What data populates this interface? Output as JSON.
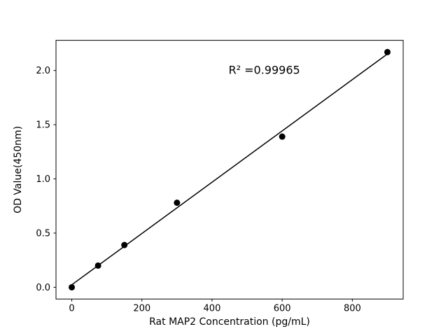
{
  "chart_data": {
    "type": "scatter",
    "title": "",
    "xlabel": "Rat MAP2 Concentration (pg/mL)",
    "ylabel": "OD Value(450nm)",
    "x": [
      0,
      75,
      150,
      300,
      600,
      900
    ],
    "y": [
      0.0,
      0.2,
      0.39,
      0.78,
      1.39,
      2.17
    ],
    "fit_line": {
      "slope": 0.002366,
      "intercept": 0.0231,
      "x_start": 0,
      "x_end": 900
    },
    "annotation": "R² =0.99965",
    "annotation_position": {
      "x_frac": 0.6,
      "y_frac": 0.13
    },
    "xticks": {
      "values": [
        0,
        200,
        400,
        600,
        800
      ],
      "labels": [
        "0",
        "200",
        "400",
        "600",
        "800"
      ]
    },
    "yticks": {
      "values": [
        0.0,
        0.5,
        1.0,
        1.5,
        2.0
      ],
      "labels": [
        "0.0",
        "0.5",
        "1.0",
        "1.5",
        "2.0"
      ]
    },
    "xlim": [
      -45,
      945
    ],
    "ylim": [
      -0.1085,
      2.2785
    ],
    "grid": false,
    "legend": "none",
    "marker_color": "#000000",
    "line_color": "#000000",
    "background_color": "#ffffff"
  }
}
